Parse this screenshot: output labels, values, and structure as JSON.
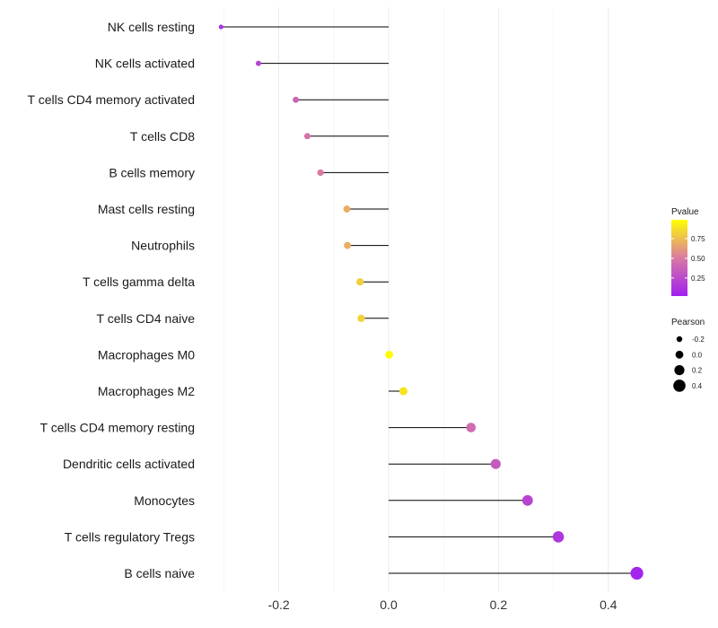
{
  "chart_data": {
    "type": "lollipop",
    "categories": [
      "NK cells resting",
      "NK cells activated",
      "T cells CD4 memory activated",
      "T cells CD8",
      "B cells memory",
      "Mast cells resting",
      "Neutrophils",
      "T cells gamma delta",
      "T cells CD4 naive",
      "Macrophages M0",
      "Macrophages M2",
      "T cells CD4 memory resting",
      "Dendritic cells activated",
      "Monocytes",
      "T cells regulatory  Tregs",
      "B cells naive"
    ],
    "pearson": [
      -0.305,
      -0.237,
      -0.169,
      -0.148,
      -0.124,
      -0.076,
      -0.075,
      -0.052,
      -0.05,
      0.001,
      0.027,
      0.15,
      0.195,
      0.253,
      0.309,
      0.452
    ],
    "pvalue": [
      0.1,
      0.2,
      0.38,
      0.45,
      0.5,
      0.7,
      0.7,
      0.82,
      0.83,
      0.99,
      0.9,
      0.42,
      0.32,
      0.2,
      0.12,
      0.02
    ],
    "x_ticks": [
      -0.2,
      0.0,
      0.2,
      0.4
    ],
    "x_tick_labels": [
      "-0.2",
      "0.0",
      "0.2",
      "0.4"
    ],
    "xlim": [
      -0.33,
      0.48
    ],
    "color_scale": {
      "low": "#a020f0",
      "mid": "#d97aa3",
      "high": "#ffff00"
    },
    "legend": {
      "color_title": "Pvalue",
      "color_ticks": [
        0.75,
        0.5,
        0.25
      ],
      "color_tick_labels": [
        "0.75",
        "0.50",
        "0.25"
      ],
      "size_title": "Pearson",
      "size_values": [
        -0.2,
        0.0,
        0.2,
        0.4
      ],
      "size_labels": [
        "-0.2",
        "0.0",
        "0.2",
        "0.4"
      ]
    },
    "grid": true,
    "legend_position": "right"
  }
}
